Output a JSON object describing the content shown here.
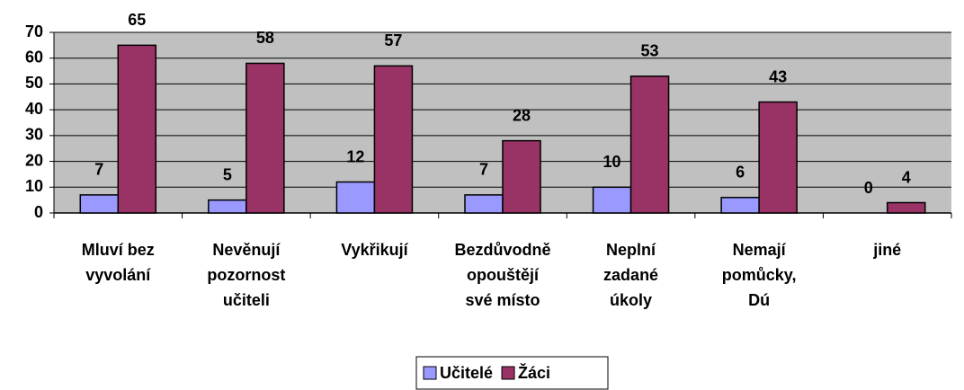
{
  "chart_data": {
    "type": "bar",
    "categories": [
      "Mluví bez\nvyvolání",
      "Nevěnují\npozornost\nučiteli",
      "Vykřikují",
      "Bezdůvodně\nopouštějí\nsvé místo",
      "Neplní\nzadané\núkoly",
      "Nemají\npomůcky,\nDú",
      "jiné"
    ],
    "series": [
      {
        "name": "Učitelé",
        "color": "#9999ff",
        "values": [
          7,
          5,
          12,
          7,
          10,
          6,
          0
        ]
      },
      {
        "name": "Žáci",
        "color": "#993366",
        "values": [
          65,
          58,
          57,
          28,
          53,
          43,
          4
        ]
      }
    ],
    "ylim": [
      0,
      70
    ],
    "yticks": [
      0,
      10,
      20,
      30,
      40,
      50,
      60,
      70
    ],
    "grid": true,
    "plot_background": "#c0c0c0",
    "legend": "bottom"
  }
}
